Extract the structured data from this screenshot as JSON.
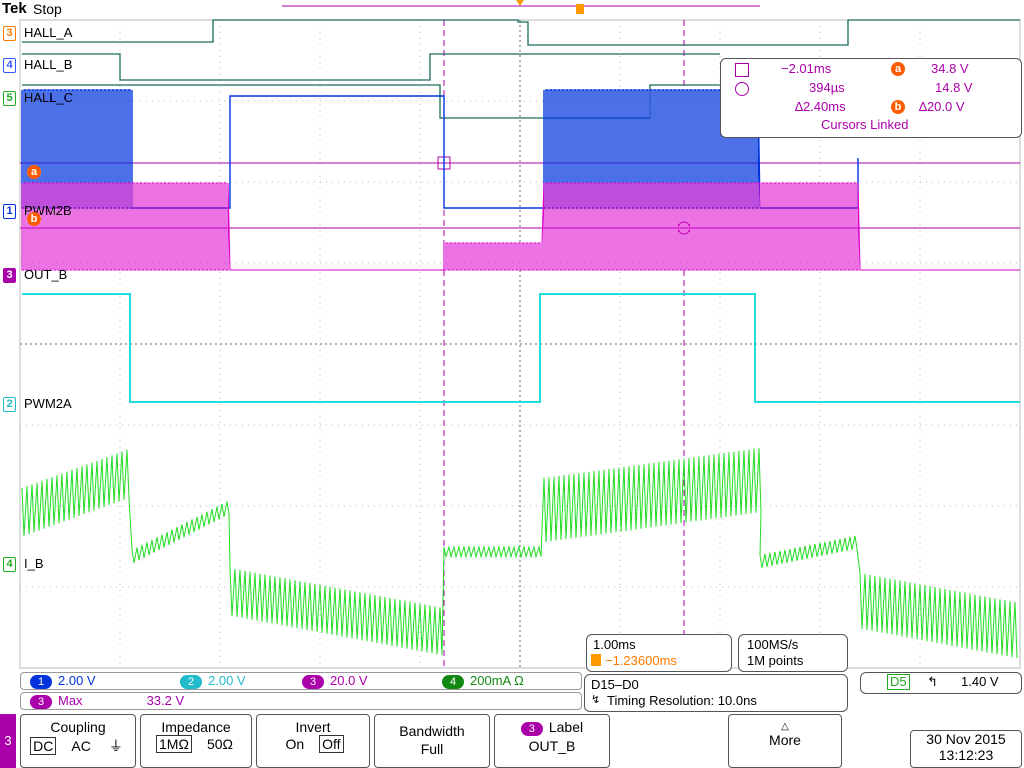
{
  "header": {
    "brand": "Tek",
    "status": "Stop"
  },
  "channels": {
    "hall_a": "HALL_A",
    "hall_b": "HALL_B",
    "hall_c": "HALL_C",
    "pwm2b": "PWM2B",
    "out_b": "OUT_B",
    "pwm2a": "PWM2A",
    "i_b": "I_B"
  },
  "channel_markers": {
    "d3": "3",
    "d4": "4",
    "d5": "5",
    "c1": "1",
    "c3": "3",
    "c2": "2",
    "c4": "4",
    "a": "a",
    "b": "b"
  },
  "cursors": {
    "t1": "−2.01ms",
    "t2": "394µs",
    "dt": "∆2.40ms",
    "va": "34.8 V",
    "vb": "14.8 V",
    "dv": "∆20.0 V",
    "linked": "Cursors Linked"
  },
  "readouts": {
    "ch1_num": "1",
    "ch1": "2.00 V",
    "ch2_num": "2",
    "ch2": "2.00 V",
    "ch3_num": "3",
    "ch3": "20.0 V",
    "ch4_num": "4",
    "ch4": "200mA Ω",
    "meas_num": "3",
    "meas_label": "Max",
    "meas_value": "33.2 V"
  },
  "timebase": {
    "scale": "1.00ms",
    "pos": "−1.23600ms",
    "rate": "100MS/s",
    "points": "1M points"
  },
  "digital": {
    "bits": "D15–D0",
    "res": "Timing Resolution: 10.0ns"
  },
  "trigger": {
    "src": "D5",
    "level": "1.40 V"
  },
  "menu": {
    "side_num": "3",
    "coupling_title": "Coupling",
    "coupling_dc": "DC",
    "coupling_ac": "AC",
    "coupling_gnd": "⏚",
    "impedance_title": "Impedance",
    "imp_1m": "1MΩ",
    "imp_50": "50Ω",
    "invert_title": "Invert",
    "invert_on": "On",
    "invert_off": "Off",
    "bw_title": "Bandwidth",
    "bw_value": "Full",
    "label_num": "3",
    "label_title": "Label",
    "label_value": "OUT_B",
    "more": "More"
  },
  "datetime": {
    "date": "30 Nov 2015",
    "time": "13:12:23"
  },
  "colors": {
    "ch1": "#0033dd",
    "ch2": "#22dddd",
    "ch3": "#dd00cc",
    "ch4": "#22dd22",
    "digital": "#1a6b5c",
    "cursor": "#aa00aa",
    "accent": "#ff5c00"
  }
}
